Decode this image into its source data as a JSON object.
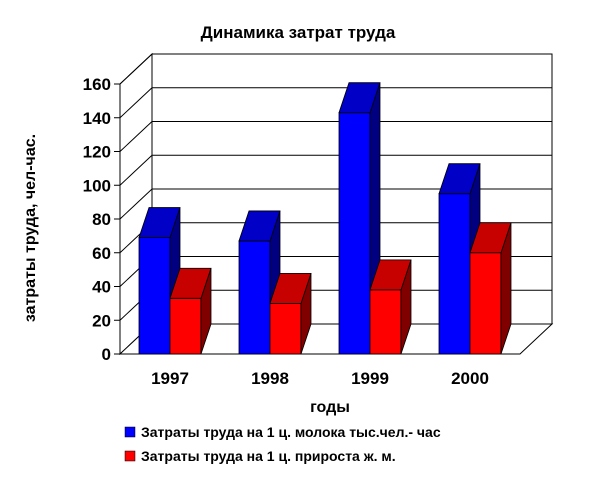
{
  "chart_data": {
    "type": "bar",
    "title": "Динамика затрат труда",
    "xlabel": "годы",
    "ylabel": "затраты труда, чел-час.",
    "categories": [
      "1997",
      "1998",
      "1999",
      "2000"
    ],
    "ylim": [
      0,
      160
    ],
    "yticks": [
      0,
      20,
      40,
      60,
      80,
      100,
      120,
      140,
      160
    ],
    "grid": true,
    "legend_position": "bottom",
    "series": [
      {
        "name": "Затраты труда на 1 ц. молока тыс.чел.- час",
        "values": [
          69,
          67,
          143,
          95
        ],
        "color": "#0000ff"
      },
      {
        "name": "Затраты труда на 1 ц. прироста ж. м.",
        "values": [
          33,
          30,
          38,
          60
        ],
        "color": "#ff0000"
      }
    ]
  }
}
